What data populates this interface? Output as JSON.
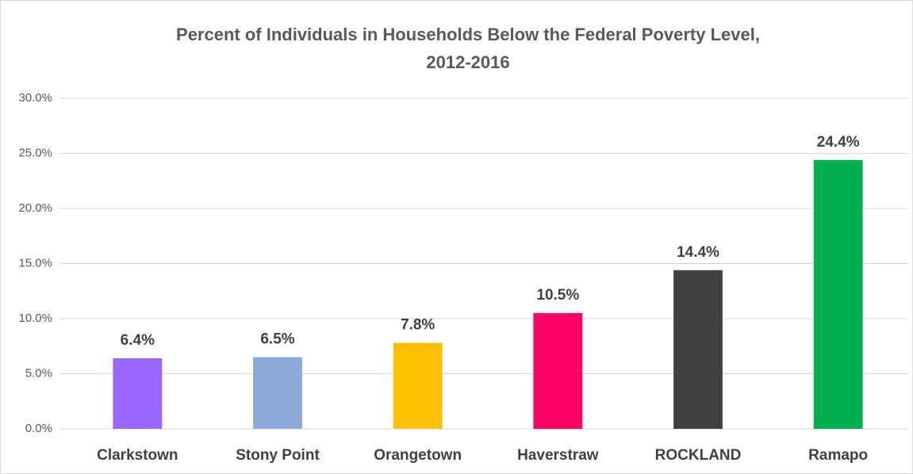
{
  "chart_data": {
    "type": "bar",
    "title": [
      "Percent of Individuals in Households Below the Federal Poverty Level,",
      "2012-2016"
    ],
    "categories": [
      "Clarkstown",
      "Stony Point",
      "Orangetown",
      "Haverstraw",
      "ROCKLAND",
      "Ramapo"
    ],
    "values": [
      6.4,
      6.5,
      7.8,
      10.5,
      14.4,
      24.4
    ],
    "value_labels": [
      "6.4%",
      "6.5%",
      "7.8%",
      "10.5%",
      "14.4%",
      "24.4%"
    ],
    "colors": [
      "#9966ff",
      "#8eaadb",
      "#ffc000",
      "#ff0066",
      "#404040",
      "#00b050"
    ],
    "ylim": [
      0,
      30
    ],
    "yticks": [
      {
        "value": 0,
        "label": "0.0%"
      },
      {
        "value": 5,
        "label": "5.0%"
      },
      {
        "value": 10,
        "label": "10.0%"
      },
      {
        "value": 15,
        "label": "15.0%"
      },
      {
        "value": 20,
        "label": "20.0%"
      },
      {
        "value": 25,
        "label": "25.0%"
      },
      {
        "value": 30,
        "label": "30.0%"
      }
    ],
    "grid": true
  }
}
